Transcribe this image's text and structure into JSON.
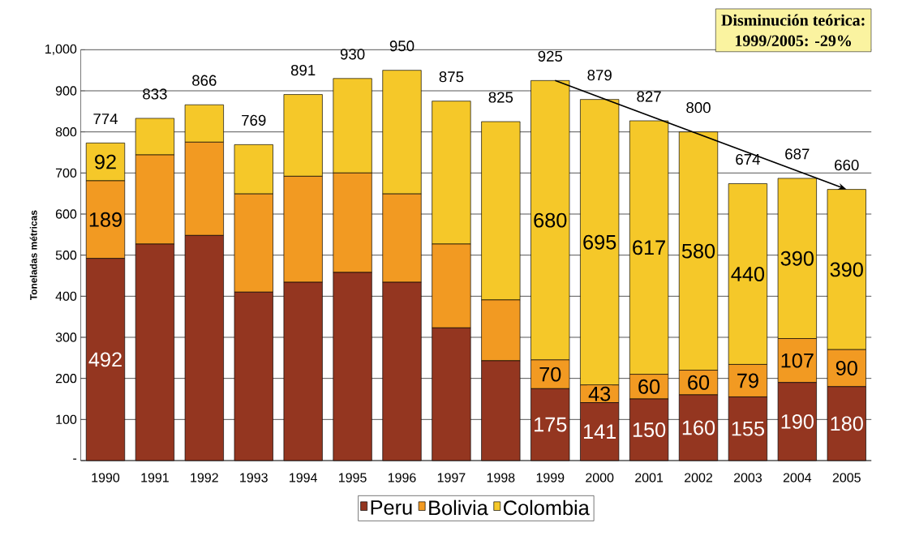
{
  "chart_data": {
    "type": "bar",
    "stacked": true,
    "ylabel": "Toneladas métricas",
    "categories": [
      "1990",
      "1991",
      "1992",
      "1993",
      "1994",
      "1995",
      "1996",
      "1997",
      "1998",
      "1999",
      "2000",
      "2001",
      "2002",
      "2003",
      "2004",
      "2005"
    ],
    "series": [
      {
        "name": "Peru",
        "color": "#943620",
        "values": [
          492,
          527,
          548,
          410,
          434,
          458,
          434,
          323,
          243,
          175,
          141,
          150,
          160,
          155,
          190,
          180
        ],
        "value_labels": [
          "492",
          null,
          null,
          null,
          null,
          null,
          null,
          null,
          null,
          "175",
          "141",
          "150",
          "160",
          "155",
          "190",
          "180"
        ]
      },
      {
        "name": "Bolivia",
        "color": "#f29a22",
        "values": [
          189,
          217,
          227,
          239,
          258,
          242,
          215,
          204,
          148,
          70,
          43,
          60,
          60,
          79,
          107,
          90
        ],
        "value_labels": [
          "189",
          null,
          null,
          null,
          null,
          null,
          null,
          null,
          null,
          "70",
          "43",
          "60",
          "60",
          "79",
          "107",
          "90"
        ]
      },
      {
        "name": "Colombia",
        "color": "#f5c829",
        "values": [
          92,
          89,
          91,
          120,
          199,
          230,
          301,
          348,
          434,
          680,
          695,
          617,
          580,
          440,
          390,
          390
        ],
        "value_labels": [
          "92",
          null,
          null,
          null,
          null,
          null,
          null,
          null,
          null,
          "680",
          "695",
          "617",
          "580",
          "440",
          "390",
          "390"
        ]
      }
    ],
    "totals": [
      "774",
      "833",
      "866",
      "769",
      "891",
      "930",
      "950",
      "875",
      "825",
      "925",
      "879",
      "827",
      "800",
      "674",
      "687",
      "660"
    ],
    "ylim": [
      0,
      1000
    ],
    "yticks": [
      {
        "value": 0,
        "label": "-"
      },
      100,
      200,
      300,
      400,
      500,
      600,
      700,
      800,
      900,
      {
        "value": 1000,
        "label": "1,000"
      }
    ],
    "grid": "y",
    "legend": "bottom",
    "annotations": [
      "Disminución teórica:",
      "1999/2005: -29%"
    ]
  }
}
